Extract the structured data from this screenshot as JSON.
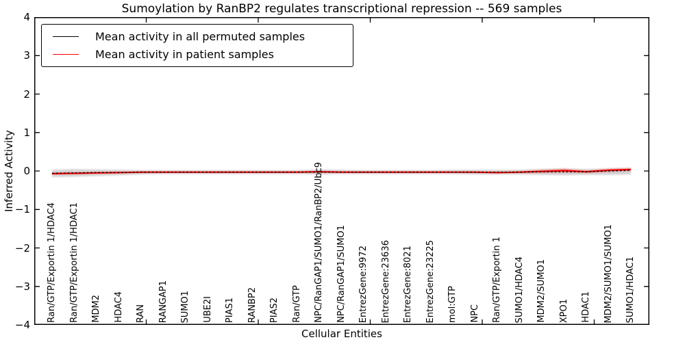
{
  "title": "Sumoylation by RanBP2 regulates transcriptional repression -- 569 samples",
  "legend": {
    "items": [
      {
        "label": "Mean activity in all permuted samples",
        "color": "#000000"
      },
      {
        "label": "Mean activity in patient samples",
        "color": "#ff0000"
      }
    ]
  },
  "axes": {
    "ylabel": "Inferred Activity",
    "xlabel": "Cellular Entities"
  },
  "chart_data": {
    "type": "line",
    "title": "Sumoylation by RanBP2 regulates transcriptional repression -- 569 samples",
    "xlabel": "Cellular Entities",
    "ylabel": "Inferred Activity",
    "ylim": [
      -4,
      4
    ],
    "yticks": [
      4,
      3,
      2,
      1,
      0,
      -1,
      -2,
      -3,
      -4
    ],
    "xtick_values": [
      5,
      10,
      15,
      20,
      25
    ],
    "grid": false,
    "legend_position": "upper left",
    "categories": [
      "Ran/GTP/Exportin 1/HDAC4",
      "Ran/GTP/Exportin 1/HDAC1",
      "MDM2",
      "HDAC4",
      "RAN",
      "RANGAP1",
      "SUMO1",
      "UBE2I",
      "PIAS1",
      "RANBP2",
      "PIAS2",
      "Ran/GTP",
      "NPC/RanGAP1/SUMO1/RanBP2/Ubc9",
      "NPC/RanGAP1/SUMO1",
      "EntrezGene:9972",
      "EntrezGene:23636",
      "EntrezGene:8021",
      "EntrezGene:23225",
      "mol:GTP",
      "NPC",
      "Ran/GTP/Exportin 1",
      "SUMO1/HDAC4",
      "MDM2/SUMO1",
      "XPO1",
      "HDAC1",
      "MDM2/SUMO1/SUMO1",
      "SUMO1/HDAC1"
    ],
    "series": [
      {
        "name": "Mean activity in all permuted samples",
        "color": "#000000",
        "dashed": true,
        "values": [
          -0.06,
          -0.05,
          -0.04,
          -0.04,
          -0.03,
          -0.03,
          -0.03,
          -0.03,
          -0.03,
          -0.03,
          -0.03,
          -0.03,
          -0.03,
          -0.03,
          -0.03,
          -0.03,
          -0.03,
          -0.03,
          -0.03,
          -0.03,
          -0.03,
          -0.03,
          -0.02,
          -0.02,
          -0.02,
          0.0,
          0.02
        ]
      },
      {
        "name": "Mean activity in patient samples",
        "color": "#ff0000",
        "dashed": false,
        "values": [
          -0.07,
          -0.06,
          -0.05,
          -0.04,
          -0.03,
          -0.03,
          -0.03,
          -0.03,
          -0.03,
          -0.03,
          -0.03,
          -0.03,
          -0.02,
          -0.03,
          -0.03,
          -0.03,
          -0.03,
          -0.03,
          -0.03,
          -0.03,
          -0.04,
          -0.03,
          -0.01,
          0.01,
          -0.02,
          0.02,
          0.04
        ]
      }
    ],
    "permuted_band": {
      "color": "#d4d4d4",
      "upper": [
        0.03,
        0.05,
        0.04,
        0.03,
        0.02,
        0.02,
        0.02,
        0.02,
        0.02,
        0.02,
        0.02,
        0.02,
        0.04,
        0.03,
        0.02,
        0.02,
        0.02,
        0.02,
        0.03,
        0.03,
        0.03,
        0.03,
        0.05,
        0.06,
        0.05,
        0.06,
        0.08
      ],
      "lower": [
        -0.16,
        -0.15,
        -0.13,
        -0.11,
        -0.09,
        -0.08,
        -0.08,
        -0.08,
        -0.08,
        -0.08,
        -0.08,
        -0.08,
        -0.09,
        -0.08,
        -0.08,
        -0.08,
        -0.08,
        -0.08,
        -0.08,
        -0.09,
        -0.09,
        -0.09,
        -0.1,
        -0.11,
        -0.1,
        -0.1,
        -0.09
      ]
    },
    "patient_band": {
      "color": "#ff0000",
      "upper": [
        -0.05,
        -0.04,
        -0.03,
        -0.02,
        -0.02,
        -0.02,
        -0.02,
        -0.02,
        -0.02,
        -0.02,
        -0.02,
        -0.02,
        0.0,
        -0.02,
        -0.02,
        -0.02,
        -0.02,
        -0.02,
        -0.02,
        -0.02,
        -0.02,
        -0.01,
        0.03,
        0.06,
        0.01,
        0.06,
        0.08
      ],
      "lower": [
        -0.09,
        -0.08,
        -0.07,
        -0.06,
        -0.05,
        -0.04,
        -0.04,
        -0.04,
        -0.04,
        -0.04,
        -0.04,
        -0.04,
        -0.04,
        -0.04,
        -0.04,
        -0.04,
        -0.04,
        -0.04,
        -0.04,
        -0.05,
        -0.06,
        -0.05,
        -0.05,
        -0.04,
        -0.05,
        -0.02,
        0.0
      ]
    }
  }
}
